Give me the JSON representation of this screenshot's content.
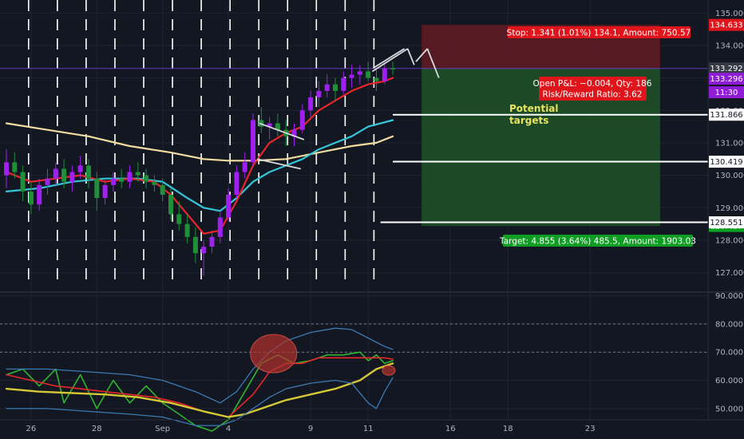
{
  "colors": {
    "background": "#131722",
    "grid": "#1f2433",
    "up": "#a020f0",
    "down": "#1f8f3a",
    "ema_red": "#e8262c",
    "ema_cyan": "#35c6d8",
    "ema_beige": "#f2dca0",
    "stop_zone": "#5a1a24",
    "target_zone": "#1e4d27",
    "stop_tag": "#e0151b",
    "target_tag": "#0f9d24",
    "purple_tag": "#8f1dd6"
  },
  "chart_data": [
    {
      "type": "candlestick",
      "name": "price-pane",
      "ylim": [
        126.4,
        135.4
      ],
      "price_ticks": [
        "127.000",
        "128.000",
        "129.000",
        "130.000",
        "131.000",
        "132.000",
        "133.000",
        "134.000",
        "135.000"
      ],
      "x_ticks": [
        {
          "label": "26",
          "index": 3
        },
        {
          "label": "28",
          "index": 11
        },
        {
          "label": "Sep",
          "index": 19
        },
        {
          "label": "4",
          "index": 27
        },
        {
          "label": "9",
          "index": 37
        },
        {
          "label": "11",
          "index": 44
        },
        {
          "label": "16",
          "index": 54
        },
        {
          "label": "18",
          "index": 61
        },
        {
          "label": "23",
          "index": 71
        }
      ],
      "x_range": [
        0,
        79.5
      ],
      "candles_last_index": 47,
      "candles": [
        [
          130.0,
          130.8,
          129.6,
          130.4
        ],
        [
          130.4,
          130.7,
          129.9,
          130.1
        ],
        [
          130.1,
          130.3,
          129.2,
          129.5
        ],
        [
          129.5,
          129.8,
          128.8,
          129.1
        ],
        [
          129.1,
          129.9,
          128.9,
          129.7
        ],
        [
          129.7,
          130.2,
          129.4,
          129.9
        ],
        [
          129.9,
          130.4,
          129.7,
          130.2
        ],
        [
          130.2,
          130.5,
          129.6,
          129.8
        ],
        [
          129.8,
          130.3,
          129.5,
          130.1
        ],
        [
          130.1,
          130.6,
          129.9,
          130.3
        ],
        [
          130.3,
          130.5,
          129.6,
          129.9
        ],
        [
          129.9,
          130.1,
          128.9,
          129.3
        ],
        [
          129.3,
          129.9,
          129.1,
          129.7
        ],
        [
          129.7,
          130.1,
          129.5,
          129.9
        ],
        [
          129.9,
          130.2,
          129.6,
          129.8
        ],
        [
          129.8,
          130.3,
          129.6,
          130.1
        ],
        [
          130.1,
          130.4,
          129.8,
          130.0
        ],
        [
          130.0,
          130.2,
          129.6,
          129.8
        ],
        [
          129.8,
          130.0,
          129.5,
          129.7
        ],
        [
          129.7,
          129.9,
          129.2,
          129.4
        ],
        [
          129.4,
          129.6,
          128.6,
          128.8
        ],
        [
          128.8,
          129.2,
          128.3,
          128.5
        ],
        [
          128.5,
          128.8,
          127.9,
          128.1
        ],
        [
          128.1,
          128.4,
          127.3,
          127.6
        ],
        [
          127.6,
          128.0,
          126.9,
          127.8
        ],
        [
          127.8,
          128.3,
          127.6,
          128.1
        ],
        [
          128.1,
          128.9,
          127.9,
          128.7
        ],
        [
          128.7,
          129.6,
          128.6,
          129.4
        ],
        [
          129.4,
          130.3,
          129.3,
          130.1
        ],
        [
          130.1,
          130.7,
          129.9,
          130.4
        ],
        [
          130.4,
          131.9,
          130.3,
          131.7
        ],
        [
          131.7,
          132.1,
          131.3,
          131.5
        ],
        [
          131.5,
          131.8,
          131.1,
          131.6
        ],
        [
          131.6,
          131.9,
          131.2,
          131.4
        ],
        [
          131.4,
          131.7,
          130.9,
          131.2
        ],
        [
          131.2,
          131.6,
          130.9,
          131.4
        ],
        [
          131.4,
          132.2,
          131.3,
          132.0
        ],
        [
          132.0,
          132.6,
          131.8,
          132.4
        ],
        [
          132.4,
          132.9,
          132.1,
          132.6
        ],
        [
          132.6,
          133.1,
          132.4,
          132.8
        ],
        [
          132.8,
          133.0,
          132.3,
          132.6
        ],
        [
          132.6,
          133.2,
          132.5,
          133.0
        ],
        [
          133.0,
          133.4,
          132.7,
          133.1
        ],
        [
          133.1,
          133.4,
          132.8,
          133.2
        ],
        [
          133.2,
          133.5,
          132.9,
          133.0
        ],
        [
          133.0,
          133.3,
          132.6,
          132.9
        ],
        [
          132.9,
          133.5,
          132.8,
          133.3
        ],
        [
          133.3,
          133.5,
          133.1,
          133.29
        ]
      ],
      "ema_red": [
        [
          0,
          130.1
        ],
        [
          3,
          129.8
        ],
        [
          6,
          129.9
        ],
        [
          9,
          130.0
        ],
        [
          12,
          129.8
        ],
        [
          15,
          129.9
        ],
        [
          18,
          129.8
        ],
        [
          20,
          129.4
        ],
        [
          22,
          128.8
        ],
        [
          24,
          128.2
        ],
        [
          26,
          128.3
        ],
        [
          28,
          129.2
        ],
        [
          30,
          130.3
        ],
        [
          32,
          131.0
        ],
        [
          34,
          131.3
        ],
        [
          36,
          131.5
        ],
        [
          38,
          132.0
        ],
        [
          40,
          132.3
        ],
        [
          42,
          132.6
        ],
        [
          44,
          132.8
        ],
        [
          46,
          132.9
        ],
        [
          47,
          133.0
        ]
      ],
      "ema_cyan": [
        [
          0,
          129.5
        ],
        [
          4,
          129.6
        ],
        [
          8,
          129.8
        ],
        [
          12,
          129.9
        ],
        [
          16,
          129.9
        ],
        [
          19,
          129.8
        ],
        [
          22,
          129.3
        ],
        [
          24,
          129.0
        ],
        [
          26,
          128.9
        ],
        [
          28,
          129.3
        ],
        [
          30,
          129.8
        ],
        [
          32,
          130.1
        ],
        [
          34,
          130.3
        ],
        [
          36,
          130.5
        ],
        [
          38,
          130.8
        ],
        [
          40,
          131.0
        ],
        [
          42,
          131.2
        ],
        [
          44,
          131.5
        ],
        [
          47,
          131.7
        ]
      ],
      "ema_beige": [
        [
          0,
          131.6
        ],
        [
          5,
          131.4
        ],
        [
          10,
          131.2
        ],
        [
          15,
          130.9
        ],
        [
          20,
          130.7
        ],
        [
          24,
          130.5
        ],
        [
          27,
          130.45
        ],
        [
          30,
          130.45
        ],
        [
          34,
          130.5
        ],
        [
          38,
          130.7
        ],
        [
          42,
          130.9
        ],
        [
          45,
          131.0
        ],
        [
          47,
          131.2
        ]
      ],
      "levels": [
        {
          "price": 131.866,
          "label": "131.866",
          "from_index": 47,
          "to_index": 79.5
        },
        {
          "price": 130.419,
          "label": "130.419",
          "from_index": 47,
          "to_index": 79.5
        },
        {
          "price": 128.551,
          "label": "128.551",
          "from_index": 45.5,
          "to_index": 79.5
        }
      ],
      "tags": [
        {
          "price": 134.633,
          "label": "134.633",
          "color": "stop"
        },
        {
          "price": 133.292,
          "label": "133.292",
          "color": "gray"
        },
        {
          "price": 133.296,
          "label": "133.296",
          "color": "purple",
          "offset": 13
        },
        {
          "price": 133.296,
          "label": "11:30",
          "color": "purple",
          "offset": 30
        },
        {
          "price": 128.437,
          "label": "128.437",
          "color": "target"
        }
      ],
      "position": {
        "entry": 133.292,
        "stop": 134.633,
        "target": 128.437,
        "from_index": 50.5,
        "to_index": 79.5
      },
      "annotations": {
        "stop_label": "Stop: 1.341 (1.01%) 134.1, Amount: 750.57",
        "pnl_line1": "Open P&L: −0.004, Qty: 186",
        "pnl_line2": "Risk/Reward Ratio: 3.62",
        "target_label": "Target: 4.855 (3.64%) 485.5, Amount: 1903.03",
        "potential_line1": "Potential",
        "potential_line2": "targets"
      }
    },
    {
      "type": "line",
      "name": "oscillator-pane",
      "ylim": [
        46,
        91
      ],
      "ticks": [
        "50.000",
        "60.000",
        "70.000",
        "80.000",
        "90.000"
      ],
      "dashed_levels": [
        70,
        80
      ],
      "series": [
        {
          "key": "rsi",
          "color": "#2fb52f",
          "points": [
            [
              0,
              62
            ],
            [
              2,
              64
            ],
            [
              4,
              58
            ],
            [
              6,
              64
            ],
            [
              7,
              52
            ],
            [
              9,
              62
            ],
            [
              11,
              50
            ],
            [
              13,
              60
            ],
            [
              15,
              52
            ],
            [
              17,
              58
            ],
            [
              19,
              52
            ],
            [
              21,
              48
            ],
            [
              23,
              44
            ],
            [
              25,
              42
            ],
            [
              27,
              46
            ],
            [
              29,
              56
            ],
            [
              31,
              66
            ],
            [
              33,
              69
            ],
            [
              35,
              66
            ],
            [
              37,
              67
            ],
            [
              39,
              69
            ],
            [
              41,
              69
            ],
            [
              43,
              70
            ],
            [
              44,
              67
            ],
            [
              45,
              69
            ],
            [
              46,
              66
            ],
            [
              47,
              67
            ]
          ]
        },
        {
          "key": "signal",
          "color": "#e8262c",
          "points": [
            [
              0,
              62
            ],
            [
              3,
              60
            ],
            [
              6,
              58
            ],
            [
              9,
              57
            ],
            [
              12,
              56
            ],
            [
              15,
              55
            ],
            [
              18,
              54
            ],
            [
              21,
              52
            ],
            [
              24,
              49
            ],
            [
              27,
              47
            ],
            [
              30,
              55
            ],
            [
              32,
              63
            ],
            [
              34,
              66
            ],
            [
              36,
              66
            ],
            [
              38,
              68
            ],
            [
              40,
              68
            ],
            [
              42,
              68
            ],
            [
              44,
              68
            ],
            [
              46,
              68
            ],
            [
              47,
              67.5
            ]
          ]
        },
        {
          "key": "average",
          "color": "#d7c837",
          "points": [
            [
              0,
              57
            ],
            [
              4,
              56
            ],
            [
              8,
              55.5
            ],
            [
              12,
              55
            ],
            [
              16,
              54
            ],
            [
              20,
              52
            ],
            [
              24,
              49
            ],
            [
              27,
              47
            ],
            [
              29,
              48
            ],
            [
              31,
              50
            ],
            [
              34,
              53
            ],
            [
              37,
              55
            ],
            [
              40,
              57
            ],
            [
              43,
              60
            ],
            [
              45,
              64
            ],
            [
              47,
              66
            ]
          ]
        },
        {
          "key": "band_upper",
          "color": "#3a7ab3",
          "points": [
            [
              0,
              64
            ],
            [
              5,
              64
            ],
            [
              10,
              63
            ],
            [
              15,
              62
            ],
            [
              19,
              60
            ],
            [
              23,
              56
            ],
            [
              26,
              52
            ],
            [
              28,
              56
            ],
            [
              30,
              64
            ],
            [
              32,
              70
            ],
            [
              34,
              74
            ],
            [
              37,
              77
            ],
            [
              40,
              78.5
            ],
            [
              42,
              78
            ],
            [
              44,
              75
            ],
            [
              46,
              72
            ],
            [
              47,
              71
            ]
          ]
        },
        {
          "key": "band_lower",
          "color": "#3a7ab3",
          "points": [
            [
              0,
              50
            ],
            [
              5,
              50
            ],
            [
              10,
              49
            ],
            [
              15,
              48
            ],
            [
              19,
              47
            ],
            [
              23,
              44
            ],
            [
              26,
              44
            ],
            [
              28,
              46
            ],
            [
              30,
              50
            ],
            [
              32,
              54
            ],
            [
              34,
              57
            ],
            [
              37,
              59
            ],
            [
              40,
              60
            ],
            [
              42,
              59
            ],
            [
              44,
              52
            ],
            [
              45,
              50
            ],
            [
              46,
              56
            ],
            [
              47,
              61
            ]
          ]
        }
      ],
      "highlights": [
        {
          "cx_index": 32.5,
          "cy_value": 69.5,
          "rx": 29,
          "ry": 24
        },
        {
          "cx_index": 46.5,
          "cy_value": 63.5,
          "rx": 8,
          "ry": 6
        }
      ]
    }
  ]
}
